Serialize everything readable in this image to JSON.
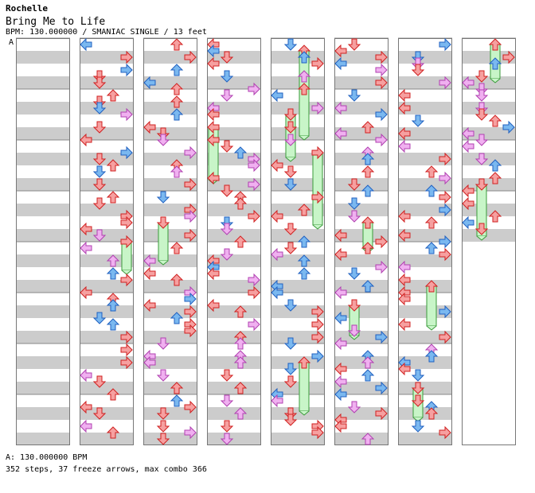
{
  "header": {
    "artist": "Rochelle",
    "title": "Bring Me to Life",
    "info": "BPM: 130.000000 / SMANIAC SINGLE / 13 feet",
    "bpm_marker": "A"
  },
  "footer": {
    "bpm_line": "A: 130.000000 BPM",
    "stats": "352 steps, 37 freeze arrows, max combo 366"
  },
  "colors": {
    "quarter": "#f6a0a0",
    "quarter_stroke": "#d02020",
    "eighth": "#7ab8f0",
    "eighth_stroke": "#2060c0",
    "sixteenth": "#f0b0f0",
    "sixteenth_stroke": "#b040b0",
    "freeze": "#c8f5c8",
    "freeze_stroke": "#3a9a3a",
    "stripe": "#cccccc"
  },
  "chart_data": {
    "type": "step-chart",
    "columns": 8,
    "measures_per_column": 8,
    "beats_per_measure": 4,
    "total_measures": 60
  }
}
